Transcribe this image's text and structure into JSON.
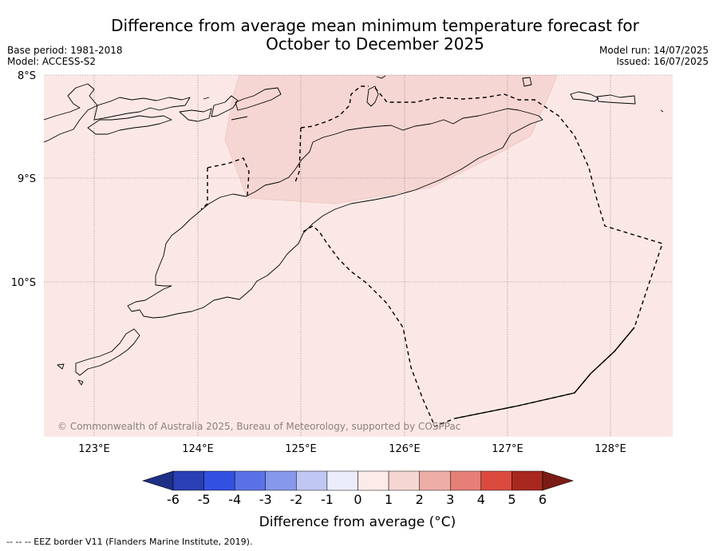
{
  "title": {
    "line1": "Difference from average mean minimum temperature forecast for",
    "line2": "October to December 2025"
  },
  "meta": {
    "base_period": "Base period: 1981-2018",
    "model": "Model: ACCESS-S2",
    "model_run": "Model run: 14/07/2025",
    "issued": "Issued: 16/07/2025"
  },
  "map": {
    "lat_labels": [
      "8°S",
      "9°S",
      "10°S"
    ],
    "lon_labels": [
      "123°E",
      "124°E",
      "125°E",
      "126°E",
      "127°E",
      "128°E"
    ],
    "copyright": "© Commonwealth of Australia 2025, Bureau of Meteorology, supported by COSPPac",
    "colors": {
      "background_anomaly_0_1": "#fbe8e6",
      "anomaly_1_2": "#f6d6d3",
      "coast": "#000000",
      "eez_border": "#000000",
      "grid": "#8a8080"
    }
  },
  "colorbar": {
    "ticks": [
      "-6",
      "-5",
      "-4",
      "-3",
      "-2",
      "-1",
      "0",
      "1",
      "2",
      "3",
      "4",
      "5",
      "6"
    ],
    "colors": [
      "#1e2f86",
      "#2a3fb4",
      "#3351e0",
      "#5b72e6",
      "#8598eb",
      "#c0c7f3",
      "#ecedfb",
      "#fcebe9",
      "#f6d6d3",
      "#eeaea8",
      "#e57f78",
      "#dc4a3f",
      "#a8281f",
      "#7a1c15"
    ],
    "label": "Difference from average (°C)"
  },
  "footnote": "--  --  -- EEZ border V11 (Flanders Marine Institute, 2019)."
}
